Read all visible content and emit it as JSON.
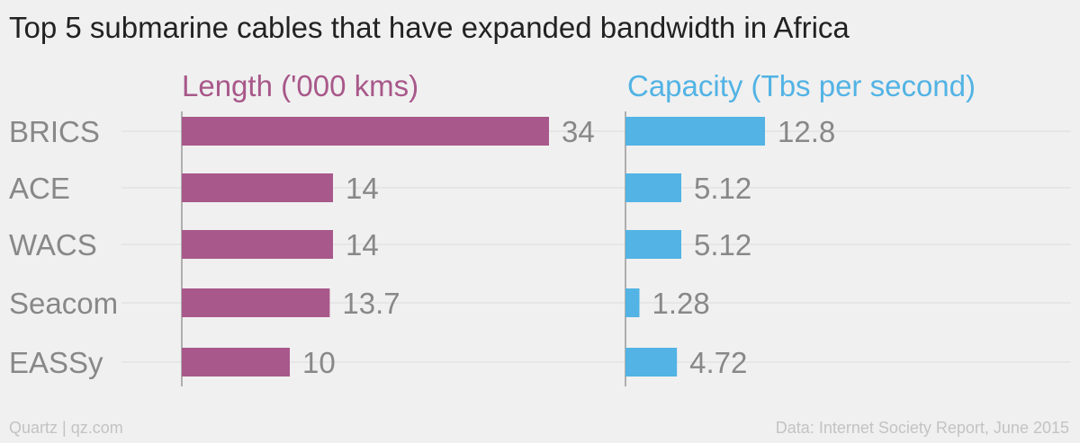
{
  "title": "Top 5 submarine cables that have expanded bandwidth in Africa",
  "footer": {
    "left": "Quartz | qz.com",
    "right": "Data: Internet Society Report, June 2015"
  },
  "colors": {
    "length": "#a8588a",
    "capacity": "#52b3e4",
    "category_text": "#888888",
    "value_text": "#888888",
    "grid": "#e3e3e3",
    "axis": "#999999"
  },
  "chart_data": {
    "type": "bar",
    "orientation": "horizontal",
    "categories": [
      "BRICS",
      "ACE",
      "WACS",
      "Seacom",
      "EASSy"
    ],
    "series": [
      {
        "name": "Length ('000 kms)",
        "values": [
          34,
          14,
          14,
          13.7,
          10
        ],
        "labels": [
          "34",
          "14",
          "14",
          "13.7",
          "10"
        ]
      },
      {
        "name": "Capacity (Tbs per second)",
        "values": [
          12.8,
          5.12,
          5.12,
          1.28,
          4.72
        ],
        "labels": [
          "12.8",
          "5.12",
          "5.12",
          "1.28",
          "4.72"
        ]
      }
    ],
    "grid": true
  }
}
